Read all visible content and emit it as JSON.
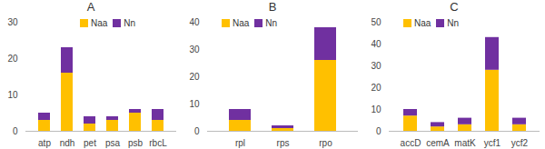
{
  "chart_data": [
    {
      "type": "bar",
      "title": "A",
      "stacked": true,
      "legend": "top",
      "categories": [
        "atp",
        "ndh",
        "pet",
        "psa",
        "psb",
        "rbcL"
      ],
      "series": [
        {
          "name": "Naa",
          "color": "#FFC000",
          "values": [
            3,
            16,
            2,
            3,
            5,
            3
          ]
        },
        {
          "name": "Nn",
          "color": "#7030A0",
          "values": [
            2,
            7,
            2,
            1,
            1,
            3
          ]
        }
      ],
      "ylim": [
        0,
        30
      ],
      "yticks": [
        0,
        10,
        20,
        30
      ],
      "grid": false
    },
    {
      "type": "bar",
      "title": "B",
      "stacked": true,
      "legend": "top",
      "categories": [
        "rpl",
        "rps",
        "rpo"
      ],
      "series": [
        {
          "name": "Naa",
          "color": "#FFC000",
          "values": [
            4,
            1,
            26
          ]
        },
        {
          "name": "Nn",
          "color": "#7030A0",
          "values": [
            4,
            1,
            12
          ]
        }
      ],
      "ylim": [
        0,
        40
      ],
      "yticks": [
        0,
        10,
        20,
        30,
        40
      ],
      "grid": false
    },
    {
      "type": "bar",
      "title": "C",
      "stacked": true,
      "legend": "top",
      "categories": [
        "accD",
        "cemA",
        "matK",
        "ycf1",
        "ycf2"
      ],
      "series": [
        {
          "name": "Naa",
          "color": "#FFC000",
          "values": [
            7,
            2,
            3,
            28,
            3
          ]
        },
        {
          "name": "Nn",
          "color": "#7030A0",
          "values": [
            3,
            2,
            3,
            15,
            3
          ]
        }
      ],
      "ylim": [
        0,
        50
      ],
      "yticks": [
        0,
        10,
        20,
        30,
        40,
        50
      ],
      "grid": false
    }
  ]
}
